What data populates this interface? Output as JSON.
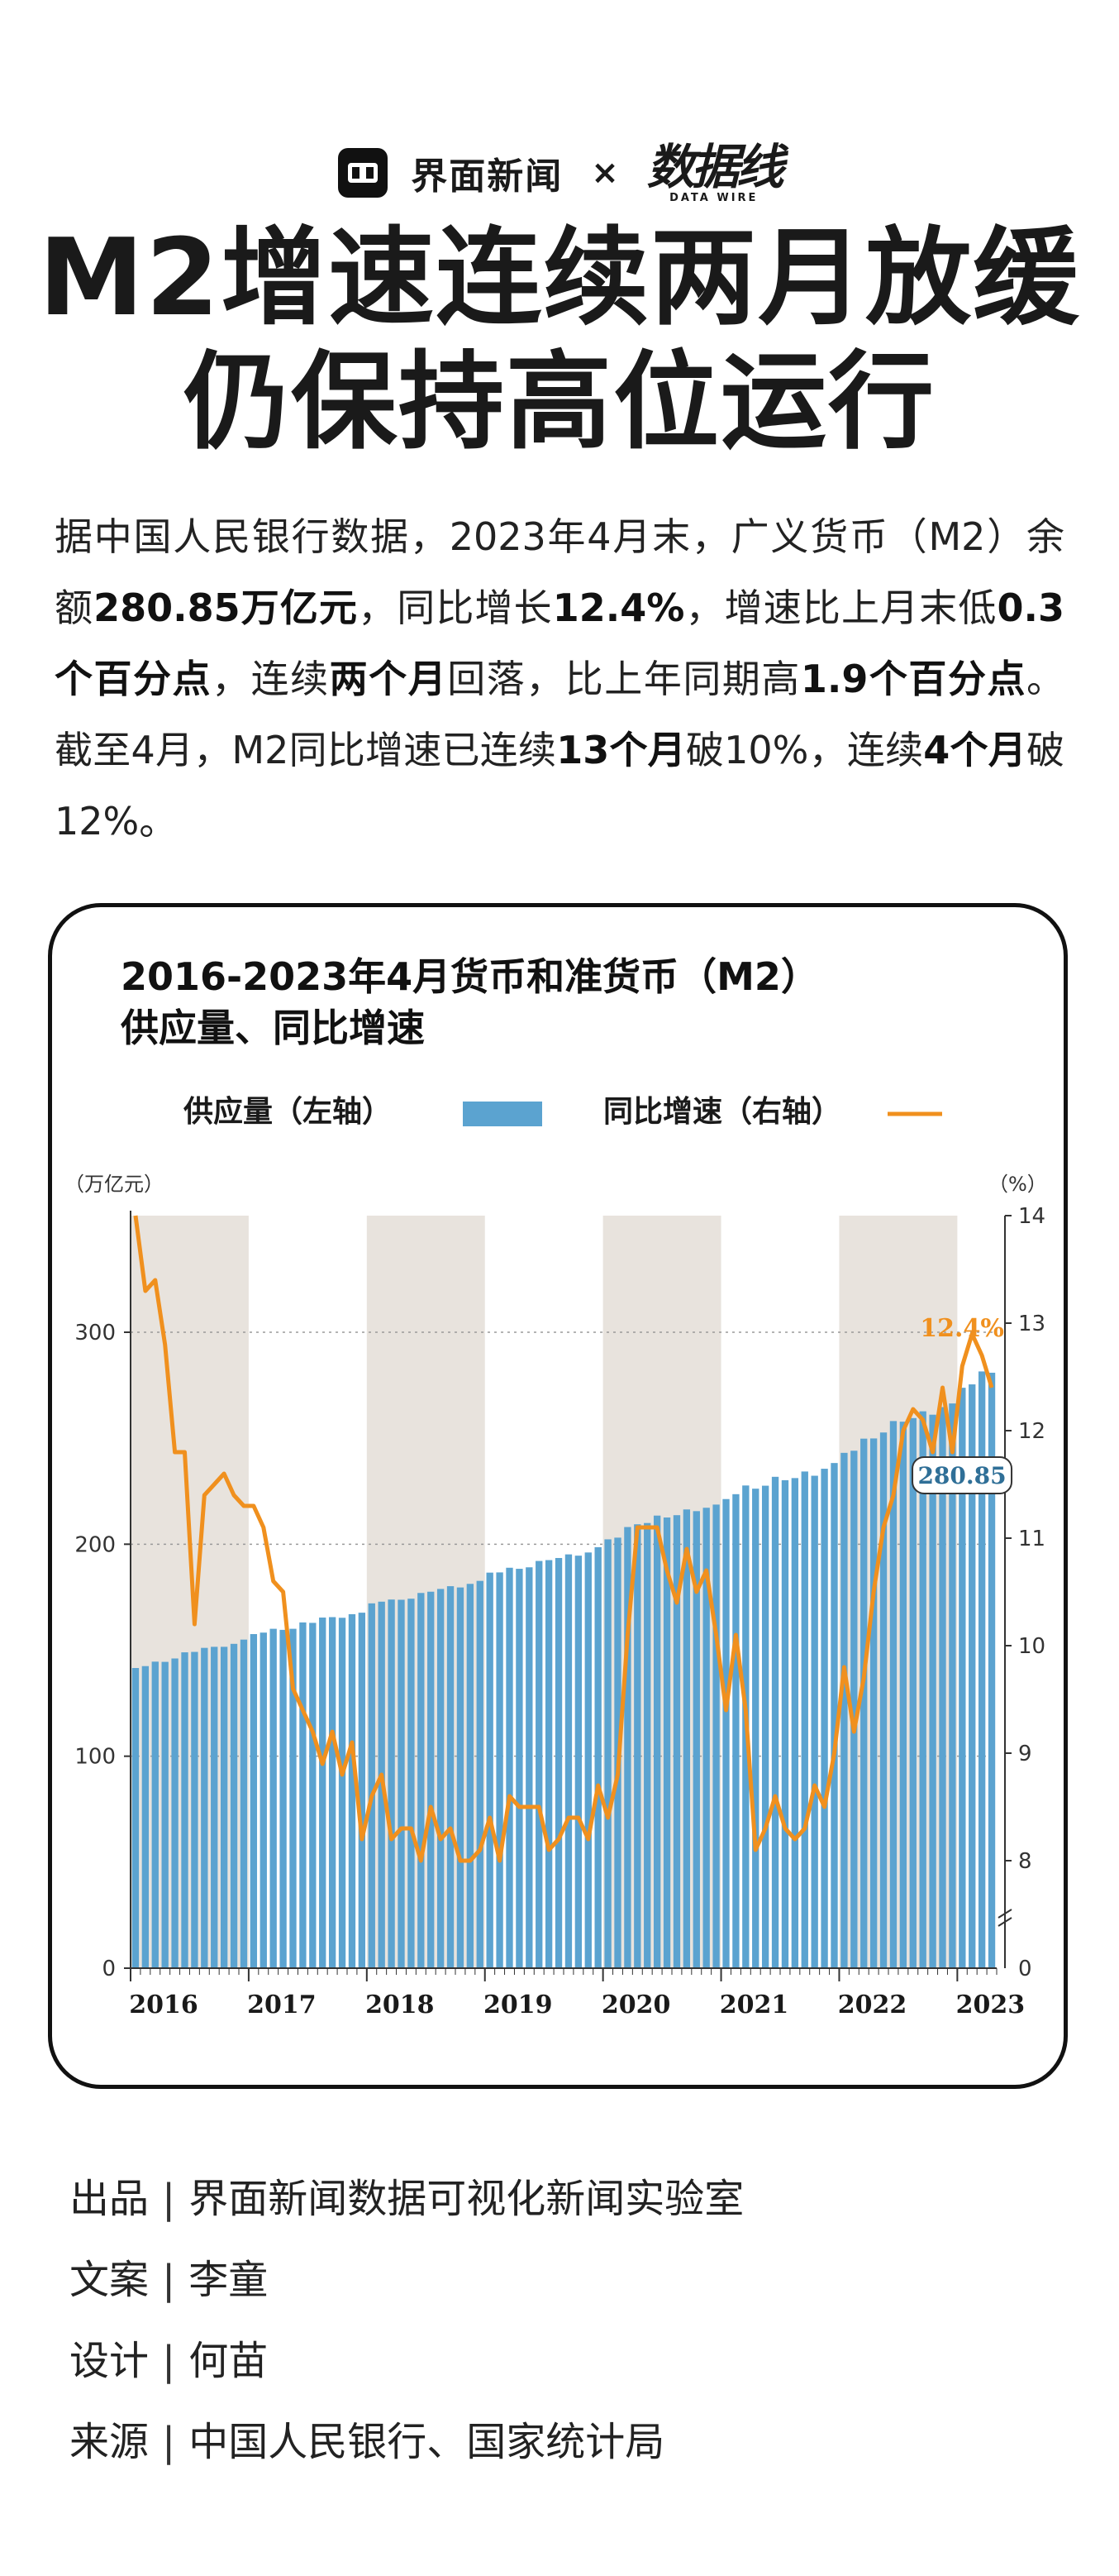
{
  "brand": {
    "name": "界面新闻",
    "cross": "×",
    "partner_cn": "数据线",
    "partner_en": "DATA WIRE"
  },
  "headline": {
    "line1": "M2增速连续两月放缓",
    "line2": "仍保持高位运行"
  },
  "intro": [
    {
      "t": "据中国人民银行数据，2023年4月末，广义货币（M2）余额",
      "b": false
    },
    {
      "t": "280.85万亿元",
      "b": true
    },
    {
      "t": "，同比增长",
      "b": false
    },
    {
      "t": "12.4%",
      "b": true
    },
    {
      "t": "，增速比上月末低",
      "b": false
    },
    {
      "t": "0.3个百分点",
      "b": true
    },
    {
      "t": "，连续",
      "b": false
    },
    {
      "t": "两个月",
      "b": true
    },
    {
      "t": "回落，比上年同期高",
      "b": false
    },
    {
      "t": "1.9个百分点",
      "b": true
    },
    {
      "t": "。截至4月，M2同比增速已连续",
      "b": false
    },
    {
      "t": "13个月",
      "b": true
    },
    {
      "t": "破10%，连续",
      "b": false
    },
    {
      "t": "4个月",
      "b": true
    },
    {
      "t": "破12%。",
      "b": false
    }
  ],
  "chart": {
    "title_line1": "2016-2023年4月货币和准货币（M2）",
    "title_line2": "供应量、同比增速"
  },
  "chart_data": {
    "type": "bar+line",
    "title": "2016-2023年4月货币和准货币（M2）供应量、同比增速",
    "left_unit": "（万亿元）",
    "right_unit": "（%）",
    "legend": [
      {
        "name": "供应量（左轴）",
        "color": "#5ba3d0",
        "mark": "bar"
      },
      {
        "name": "同比增速（右轴）",
        "color": "#f0901e",
        "mark": "line"
      }
    ],
    "left_ticks": [
      "0",
      "100",
      "200",
      "300"
    ],
    "left_ylim": [
      0,
      355
    ],
    "right_ticks": [
      "8",
      "9",
      "10",
      "11",
      "12",
      "13",
      "14"
    ],
    "right_ylim": [
      7,
      14
    ],
    "right_axis_break": true,
    "year_labels": [
      "2016",
      "2017",
      "2018",
      "2019",
      "2020",
      "2021",
      "2022",
      "2023"
    ],
    "shaded_years": [
      "2016",
      "2018",
      "2020",
      "2022"
    ],
    "grid": "dotted horizontal",
    "annotations": {
      "last_growth": "12.4%",
      "last_supply": "280.85"
    },
    "months_start": "2016-01",
    "months_end": "2023-04",
    "supply": [
      141.6,
      142.5,
      144.6,
      144.5,
      146.1,
      149.0,
      149.2,
      151.1,
      151.6,
      151.6,
      153.0,
      155.0,
      157.6,
      158.3,
      160.1,
      159.6,
      160.1,
      163.1,
      162.9,
      165.4,
      165.6,
      165.3,
      167.0,
      167.7,
      172.1,
      172.9,
      173.9,
      173.8,
      174.3,
      177.0,
      177.6,
      178.9,
      180.2,
      179.6,
      181.3,
      182.7,
      186.6,
      186.7,
      188.9,
      188.4,
      189.1,
      192.1,
      192.5,
      193.5,
      195.2,
      194.6,
      196.1,
      198.6,
      202.3,
      203.1,
      208.1,
      209.4,
      210.0,
      213.5,
      212.6,
      213.7,
      216.4,
      215.6,
      217.2,
      218.7,
      221.3,
      223.6,
      227.7,
      226.2,
      227.6,
      231.8,
      230.2,
      231.2,
      234.3,
      232.3,
      235.6,
      238.3,
      243.1,
      244.1,
      249.8,
      249.9,
      252.7,
      258.1,
      257.8,
      259.5,
      262.7,
      261.1,
      264.7,
      266.4,
      273.8,
      275.4,
      281.5,
      280.9
    ],
    "growth": [
      14.0,
      13.3,
      13.4,
      12.8,
      11.8,
      11.8,
      10.2,
      11.4,
      11.5,
      11.6,
      11.4,
      11.3,
      11.3,
      11.1,
      10.6,
      10.5,
      9.6,
      9.4,
      9.2,
      8.9,
      9.2,
      8.8,
      9.1,
      8.2,
      8.6,
      8.8,
      8.2,
      8.3,
      8.3,
      8.0,
      8.5,
      8.2,
      8.3,
      8.0,
      8.0,
      8.1,
      8.4,
      8.0,
      8.6,
      8.5,
      8.5,
      8.5,
      8.1,
      8.2,
      8.4,
      8.4,
      8.2,
      8.7,
      8.4,
      8.8,
      10.1,
      11.1,
      11.1,
      11.1,
      10.7,
      10.4,
      10.9,
      10.5,
      10.7,
      10.1,
      9.4,
      10.1,
      9.4,
      8.1,
      8.3,
      8.6,
      8.3,
      8.2,
      8.3,
      8.7,
      8.5,
      9.0,
      9.8,
      9.2,
      9.7,
      10.5,
      11.1,
      11.4,
      12.0,
      12.2,
      12.1,
      11.8,
      12.4,
      11.8,
      12.6,
      12.9,
      12.7,
      12.4
    ]
  },
  "credits": [
    {
      "key": "出品",
      "val": "界面新闻数据可视化新闻实验室"
    },
    {
      "key": "文案",
      "val": "李童"
    },
    {
      "key": "设计",
      "val": "何苗"
    },
    {
      "key": "来源",
      "val": "中国人民银行、国家统计局"
    }
  ],
  "colors": {
    "bar": "#5ba3d0",
    "line": "#f0901e",
    "band": "#e8e3dd",
    "text": "#1a1a1a"
  }
}
